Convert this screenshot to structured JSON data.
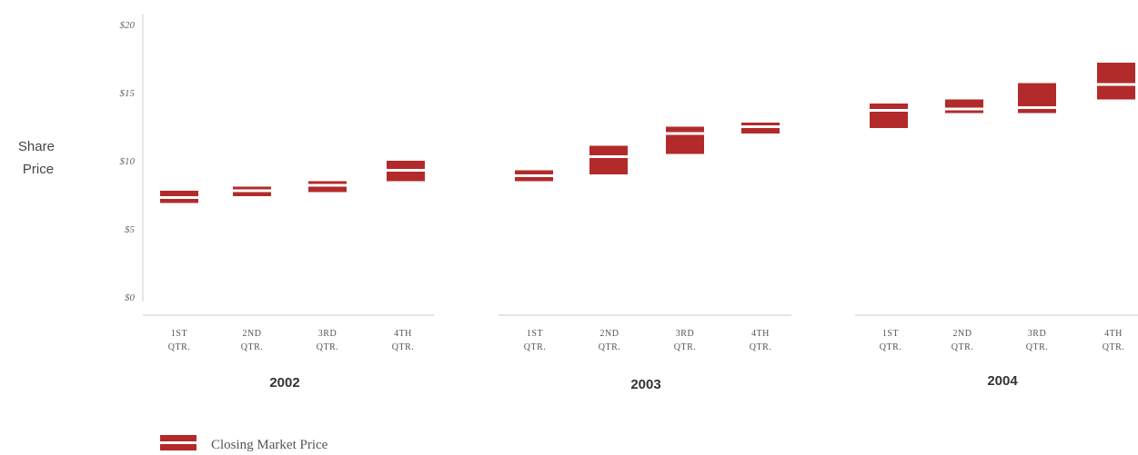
{
  "chart_data": {
    "type": "range-bar",
    "ylabel": [
      "Share",
      "Price"
    ],
    "y_ticks": [
      "$20",
      "$15",
      "$10",
      "$5",
      "$0"
    ],
    "y_tick_values": [
      20,
      15,
      10,
      5,
      0
    ],
    "ylim": [
      0,
      20
    ],
    "quarter_labels": [
      [
        "1ST",
        "QTR."
      ],
      [
        "2ND",
        "QTR."
      ],
      [
        "3RD",
        "QTR."
      ],
      [
        "4TH",
        "QTR."
      ]
    ],
    "groups": [
      {
        "year": "2002",
        "bars": [
          {
            "low": 6.9,
            "high": 7.8,
            "close": 7.3
          },
          {
            "low": 7.4,
            "high": 8.1,
            "close": 7.8
          },
          {
            "low": 7.7,
            "high": 8.5,
            "close": 8.2
          },
          {
            "low": 8.5,
            "high": 10.0,
            "close": 9.3
          }
        ]
      },
      {
        "year": "2003",
        "bars": [
          {
            "low": 8.5,
            "high": 9.3,
            "close": 8.9
          },
          {
            "low": 9.0,
            "high": 11.1,
            "close": 10.3
          },
          {
            "low": 10.5,
            "high": 12.5,
            "close": 12.0
          },
          {
            "low": 12.0,
            "high": 12.8,
            "close": 12.5
          }
        ]
      },
      {
        "year": "2004",
        "bars": [
          {
            "low": 12.4,
            "high": 14.2,
            "close": 13.7
          },
          {
            "low": 13.5,
            "high": 14.5,
            "close": 13.8
          },
          {
            "low": 13.5,
            "high": 15.7,
            "close": 13.9
          },
          {
            "low": 14.5,
            "high": 17.2,
            "close": 15.6
          }
        ]
      }
    ],
    "legend": {
      "label": "Closing Market Price",
      "position": "bottom-left"
    },
    "colors": {
      "bar": "#b22a2a",
      "close_line": "#ffffff",
      "axis": "#cccccc"
    }
  }
}
